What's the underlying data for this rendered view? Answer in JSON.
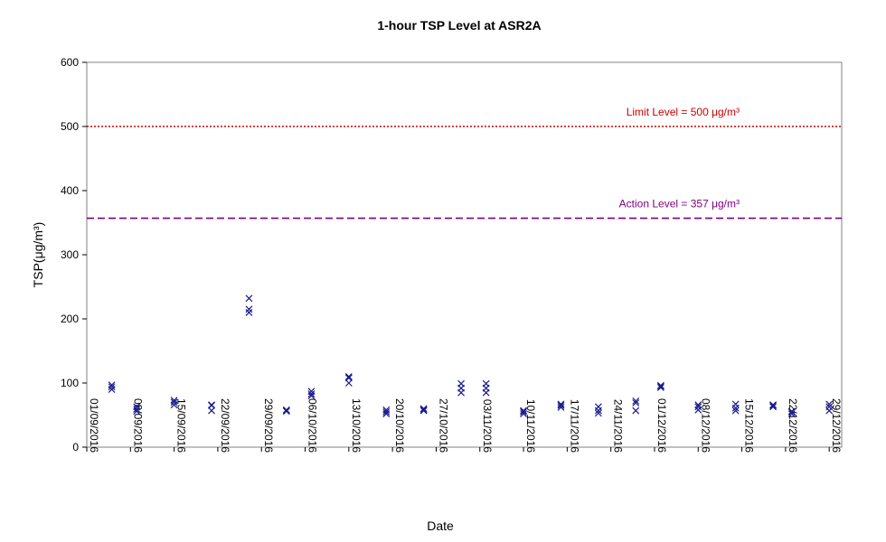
{
  "chart_data": {
    "type": "scatter",
    "title": "1-hour TSP Level at ASR2A",
    "xlabel": "Date",
    "ylabel": "TSP(μg/m³)",
    "ylim": [
      0,
      600
    ],
    "yticks": [
      0,
      100,
      200,
      300,
      400,
      500,
      600
    ],
    "xlim": [
      "2016-09-01",
      "2016-12-31"
    ],
    "xtick_labels": [
      "01/09/2016",
      "08/09/2016",
      "15/09/2016",
      "22/09/2016",
      "29/09/2016",
      "06/10/2016",
      "13/10/2016",
      "20/10/2016",
      "27/10/2016",
      "03/11/2016",
      "10/11/2016",
      "17/11/2016",
      "24/11/2016",
      "01/12/2016",
      "08/12/2016",
      "15/12/2016",
      "22/12/2016",
      "29/12/2016"
    ],
    "grid": false,
    "marker": "x",
    "marker_color": "#1a1a8c",
    "reference_lines": [
      {
        "label": "Limit Level = 500 μg/m³",
        "value": 500,
        "color": "#cc0000",
        "style": "dotted"
      },
      {
        "label": "Action Level = 357 μg/m³",
        "value": 357,
        "color": "#800080",
        "style": "dashed"
      }
    ],
    "series": [
      {
        "points": [
          {
            "x": "2016-09-05",
            "y": 90
          },
          {
            "x": "2016-09-05",
            "y": 94
          },
          {
            "x": "2016-09-05",
            "y": 97
          },
          {
            "x": "2016-09-09",
            "y": 56
          },
          {
            "x": "2016-09-09",
            "y": 59
          },
          {
            "x": "2016-09-09",
            "y": 63
          },
          {
            "x": "2016-09-15",
            "y": 66
          },
          {
            "x": "2016-09-15",
            "y": 70
          },
          {
            "x": "2016-09-15",
            "y": 73
          },
          {
            "x": "2016-09-21",
            "y": 57
          },
          {
            "x": "2016-09-21",
            "y": 65
          },
          {
            "x": "2016-09-21",
            "y": 66
          },
          {
            "x": "2016-09-27",
            "y": 210
          },
          {
            "x": "2016-09-27",
            "y": 215
          },
          {
            "x": "2016-09-27",
            "y": 232
          },
          {
            "x": "2016-10-03",
            "y": 56
          },
          {
            "x": "2016-10-03",
            "y": 57
          },
          {
            "x": "2016-10-03",
            "y": 58
          },
          {
            "x": "2016-10-07",
            "y": 80
          },
          {
            "x": "2016-10-07",
            "y": 83
          },
          {
            "x": "2016-10-07",
            "y": 87
          },
          {
            "x": "2016-10-13",
            "y": 100
          },
          {
            "x": "2016-10-13",
            "y": 108
          },
          {
            "x": "2016-10-13",
            "y": 110
          },
          {
            "x": "2016-10-19",
            "y": 52
          },
          {
            "x": "2016-10-19",
            "y": 55
          },
          {
            "x": "2016-10-19",
            "y": 58
          },
          {
            "x": "2016-10-25",
            "y": 57
          },
          {
            "x": "2016-10-25",
            "y": 58
          },
          {
            "x": "2016-10-25",
            "y": 60
          },
          {
            "x": "2016-10-31",
            "y": 85
          },
          {
            "x": "2016-10-31",
            "y": 92
          },
          {
            "x": "2016-10-31",
            "y": 99
          },
          {
            "x": "2016-11-04",
            "y": 85
          },
          {
            "x": "2016-11-04",
            "y": 92
          },
          {
            "x": "2016-11-04",
            "y": 99
          },
          {
            "x": "2016-11-10",
            "y": 52
          },
          {
            "x": "2016-11-10",
            "y": 55
          },
          {
            "x": "2016-11-10",
            "y": 57
          },
          {
            "x": "2016-11-16",
            "y": 62
          },
          {
            "x": "2016-11-16",
            "y": 65
          },
          {
            "x": "2016-11-16",
            "y": 67
          },
          {
            "x": "2016-11-22",
            "y": 53
          },
          {
            "x": "2016-11-22",
            "y": 57
          },
          {
            "x": "2016-11-22",
            "y": 63
          },
          {
            "x": "2016-11-28",
            "y": 57
          },
          {
            "x": "2016-11-28",
            "y": 69
          },
          {
            "x": "2016-11-28",
            "y": 72
          },
          {
            "x": "2016-12-02",
            "y": 93
          },
          {
            "x": "2016-12-02",
            "y": 95
          },
          {
            "x": "2016-12-02",
            "y": 96
          },
          {
            "x": "2016-12-08",
            "y": 58
          },
          {
            "x": "2016-12-08",
            "y": 63
          },
          {
            "x": "2016-12-08",
            "y": 66
          },
          {
            "x": "2016-12-14",
            "y": 57
          },
          {
            "x": "2016-12-14",
            "y": 61
          },
          {
            "x": "2016-12-14",
            "y": 67
          },
          {
            "x": "2016-12-20",
            "y": 63
          },
          {
            "x": "2016-12-20",
            "y": 65
          },
          {
            "x": "2016-12-20",
            "y": 66
          },
          {
            "x": "2016-12-23",
            "y": 52
          },
          {
            "x": "2016-12-23",
            "y": 55
          },
          {
            "x": "2016-12-23",
            "y": 56
          },
          {
            "x": "2016-12-29",
            "y": 57
          },
          {
            "x": "2016-12-29",
            "y": 63
          },
          {
            "x": "2016-12-29",
            "y": 67
          }
        ]
      }
    ]
  }
}
